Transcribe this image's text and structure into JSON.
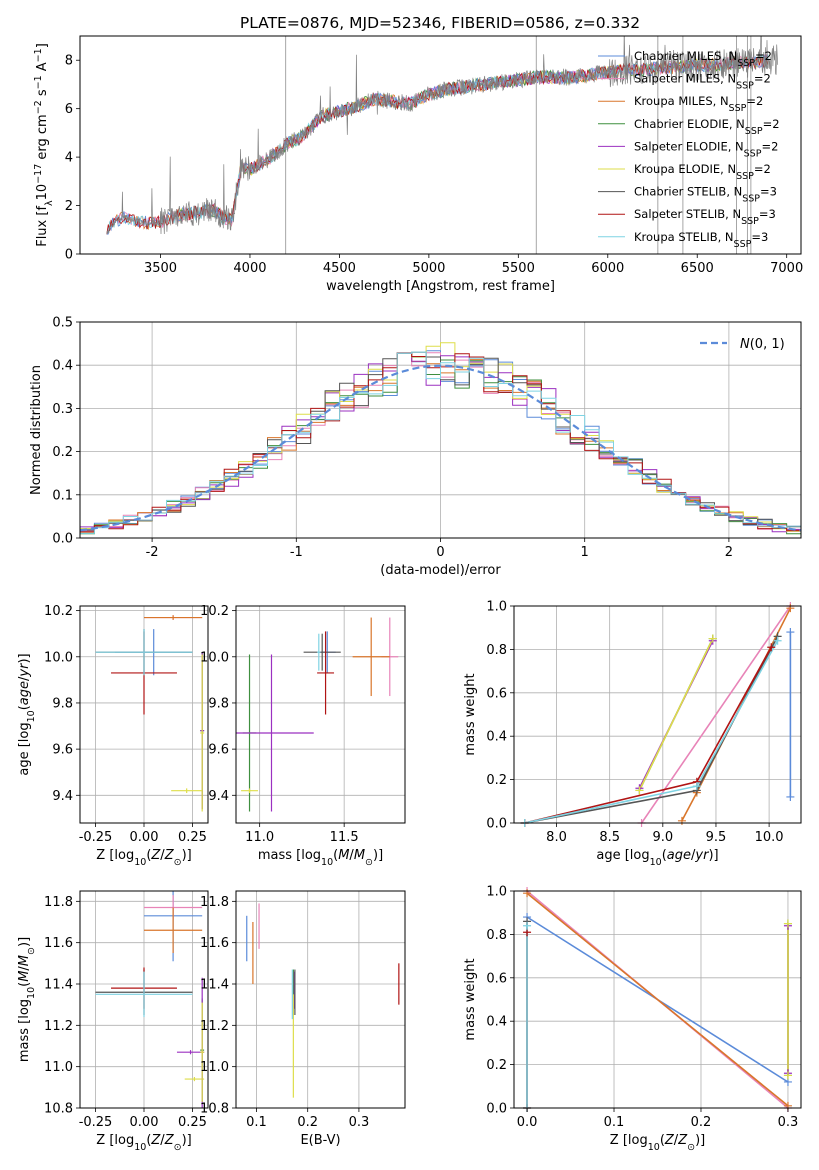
{
  "figure_title": "PLATE=0876, MJD=52346, FIBERID=0586, z=0.332",
  "colors": {
    "Chabrier MILES": "#5b8bd9",
    "Salpeter MILES": "#e884b8",
    "Kroupa MILES": "#d9762b",
    "Chabrier ELODIE": "#3f8f3f",
    "Salpeter ELODIE": "#9b30c0",
    "Kroupa ELODIE": "#dede4a",
    "Chabrier STELIB": "#555555",
    "Salpeter STELIB": "#b01414",
    "Kroupa STELIB": "#7fd3e3",
    "data": "#808080",
    "normal": "#5b8bd9"
  },
  "chart_data": [
    {
      "id": "spectrum",
      "type": "line",
      "title": "PLATE=0876, MJD=52346, FIBERID=0586, z=0.332",
      "xlabel": "wavelength [Angstrom, rest frame]",
      "ylabel": "Flux [f_λ 10^-17 erg cm^-2 s^-1 A^-1]",
      "xlim": [
        3050,
        7080
      ],
      "ylim": [
        0,
        9
      ],
      "xticks": [
        3500,
        4000,
        4500,
        5000,
        5500,
        6000,
        6500,
        7000
      ],
      "yticks": [
        0,
        2,
        4,
        6,
        8
      ],
      "grid": false,
      "legend": [
        "Chabrier MILES, N_SSP=2",
        "Salpeter MILES, N_SSP=2",
        "Kroupa MILES, N_SSP=2",
        "Chabrier ELODIE, N_SSP=2",
        "Salpeter ELODIE, N_SSP=2",
        "Kroupa ELODIE, N_SSP=2",
        "Chabrier STELIB, N_SSP=3",
        "Salpeter STELIB, N_SSP=3",
        "Kroupa STELIB, N_SSP=3"
      ],
      "legend_placement": "lower-right",
      "continuum": {
        "x": [
          3200,
          3250,
          3300,
          3400,
          3500,
          3600,
          3700,
          3800,
          3850,
          3900,
          3950,
          4000,
          4100,
          4200,
          4300,
          4400,
          4500,
          4600,
          4700,
          4800,
          4900,
          5000,
          5100,
          5200,
          5300,
          5400,
          5500,
          5600,
          5700,
          5800,
          5900,
          6000,
          6100,
          6200,
          6300,
          6400,
          6500,
          6600,
          6700,
          6800,
          6900
        ],
        "y": [
          0.9,
          1.4,
          1.5,
          1.3,
          1.3,
          1.6,
          1.7,
          1.8,
          1.5,
          1.4,
          3.6,
          3.5,
          3.9,
          4.5,
          4.9,
          5.7,
          5.9,
          6.1,
          6.4,
          6.3,
          6.2,
          6.6,
          6.8,
          6.9,
          7.0,
          7.1,
          7.2,
          7.3,
          7.3,
          7.3,
          7.4,
          7.5,
          7.6,
          7.6,
          7.7,
          7.7,
          7.8,
          7.8,
          7.9,
          7.9,
          8.0
        ]
      },
      "data_spike_lines": [
        4200,
        5600,
        6280,
        6420,
        6720,
        6780,
        6800
      ]
    },
    {
      "id": "residuals",
      "type": "line",
      "xlabel": "(data-model)/error",
      "ylabel": "Normed distribution",
      "xlim": [
        -2.5,
        2.5
      ],
      "ylim": [
        0,
        0.5
      ],
      "xticks": [
        -2,
        -1,
        0,
        1,
        2
      ],
      "yticks": [
        0.0,
        0.1,
        0.2,
        0.3,
        0.4,
        0.5
      ],
      "grid": true,
      "legend": [
        "N(0,1)"
      ],
      "legend_placement": "top-right",
      "normal": {
        "mean": 0,
        "sigma": 1
      }
    },
    {
      "id": "age-vs-Z",
      "type": "scatter",
      "xlabel": "Z [log10(Z/Z⊙)]",
      "ylabel": "age  [log10(age/yr)]",
      "xlim": [
        -0.33,
        0.33
      ],
      "ylim": [
        9.28,
        10.22
      ],
      "xticks": [
        -0.25,
        0.0,
        0.25
      ],
      "yticks": [
        9.4,
        9.6,
        9.8,
        10.0,
        10.2
      ],
      "grid": true,
      "points": [
        {
          "model": "Chabrier MILES",
          "x": 0.05,
          "xerr": 0.2,
          "y": 10.02,
          "yerr": 0.1
        },
        {
          "model": "Salpeter MILES",
          "x": 0.15,
          "xerr": 0.15,
          "y": 10.17,
          "yerr": 0.01
        },
        {
          "model": "Kroupa MILES",
          "x": 0.15,
          "xerr": 0.15,
          "y": 10.17,
          "yerr": 0.01
        },
        {
          "model": "Chabrier ELODIE",
          "x": 0.3,
          "xerr": 0.01,
          "y": 9.68,
          "yerr": 0.34
        },
        {
          "model": "Salpeter ELODIE",
          "x": 0.3,
          "xerr": 0.01,
          "y": 9.68,
          "yerr": 0.34
        },
        {
          "model": "Kroupa ELODIE",
          "x": 0.3,
          "xerr": 0.01,
          "y": 9.67,
          "yerr": 0.34
        },
        {
          "model": "Chabrier STELIB",
          "x": 0.0,
          "xerr": 0.25,
          "y": 10.02,
          "yerr": 0.1
        },
        {
          "model": "Salpeter STELIB",
          "x": 0.0,
          "xerr": 0.17,
          "y": 9.93,
          "yerr": 0.18
        },
        {
          "model": "Kroupa STELIB",
          "x": 0.0,
          "xerr": 0.25,
          "y": 10.02,
          "yerr": 0.1
        },
        {
          "model": "Kroupa ELODIE",
          "x": 0.22,
          "xerr": 0.08,
          "y": 9.42,
          "yerr": 0.01
        }
      ]
    },
    {
      "id": "age-vs-mass",
      "type": "scatter",
      "xlabel": "mass [log10(M/M⊙)]",
      "ylabel": "",
      "xlim": [
        10.86,
        11.86
      ],
      "ylim": [
        9.28,
        10.22
      ],
      "xticks": [
        11.0,
        11.5
      ],
      "yticks": [
        9.4,
        9.6,
        9.8,
        10.0,
        10.2
      ],
      "grid": true,
      "points": [
        {
          "model": "Chabrier MILES",
          "x": 11.4,
          "xerr": 0.05,
          "y": 10.02,
          "yerr": 0.09
        },
        {
          "model": "Salpeter MILES",
          "x": 11.77,
          "xerr": 0.05,
          "y": 10.0,
          "yerr": 0.17
        },
        {
          "model": "Kroupa MILES",
          "x": 11.66,
          "xerr": 0.11,
          "y": 10.0,
          "yerr": 0.17
        },
        {
          "model": "Chabrier ELODIE",
          "x": 10.94,
          "xerr": 0.04,
          "y": 9.67,
          "yerr": 0.34
        },
        {
          "model": "Salpeter ELODIE",
          "x": 11.07,
          "xerr": 0.25,
          "y": 9.67,
          "yerr": 0.34
        },
        {
          "model": "Kroupa ELODIE",
          "x": 10.94,
          "xerr": 0.05,
          "y": 9.42,
          "yerr": 0.01
        },
        {
          "model": "Chabrier STELIB",
          "x": 11.37,
          "xerr": 0.11,
          "y": 10.02,
          "yerr": 0.08
        },
        {
          "model": "Salpeter STELIB",
          "x": 11.39,
          "xerr": 0.05,
          "y": 9.93,
          "yerr": 0.18
        },
        {
          "model": "Kroupa STELIB",
          "x": 11.35,
          "xerr": 0.01,
          "y": 10.02,
          "yerr": 0.08
        }
      ]
    },
    {
      "id": "weight-vs-age",
      "type": "line",
      "xlabel": "age  [log10(age/yr)]",
      "ylabel": "mass weight",
      "xlim": [
        7.6,
        10.3
      ],
      "ylim": [
        0,
        1
      ],
      "xticks": [
        8.0,
        8.5,
        9.0,
        9.5,
        10.0
      ],
      "yticks": [
        0.0,
        0.2,
        0.4,
        0.6,
        0.8,
        1.0
      ],
      "grid": true,
      "series": [
        {
          "model": "Chabrier MILES",
          "x": [
            10.2,
            10.2
          ],
          "y": [
            0.12,
            0.88
          ],
          "vertical_range": true
        },
        {
          "model": "Salpeter MILES",
          "x": [
            8.8,
            10.2
          ],
          "y": [
            0.0,
            1.0
          ]
        },
        {
          "model": "Kroupa MILES",
          "x": [
            9.18,
            9.32,
            10.2
          ],
          "y": [
            0.01,
            0.14,
            0.99
          ]
        },
        {
          "model": "Chabrier ELODIE",
          "x": [
            8.78,
            9.47
          ],
          "y": [
            0.15,
            0.85
          ]
        },
        {
          "model": "Salpeter ELODIE",
          "x": [
            8.78,
            9.47
          ],
          "y": [
            0.16,
            0.84
          ]
        },
        {
          "model": "Kroupa ELODIE",
          "x": [
            8.78,
            9.47
          ],
          "y": [
            0.15,
            0.85
          ]
        },
        {
          "model": "Chabrier STELIB",
          "x": [
            7.7,
            9.32,
            10.08
          ],
          "y": [
            0.0,
            0.15,
            0.86
          ]
        },
        {
          "model": "Salpeter STELIB",
          "x": [
            7.7,
            9.32,
            10.02
          ],
          "y": [
            0.0,
            0.19,
            0.81
          ]
        },
        {
          "model": "Kroupa STELIB",
          "x": [
            7.7,
            9.32,
            10.08
          ],
          "y": [
            0.0,
            0.17,
            0.84
          ]
        }
      ]
    },
    {
      "id": "mass-vs-Z",
      "type": "scatter",
      "xlabel": "Z [log10(Z/Z⊙)]",
      "ylabel": "mass [log10(M/M⊙)]",
      "xlim": [
        -0.33,
        0.33
      ],
      "ylim": [
        10.8,
        11.85
      ],
      "xticks": [
        -0.25,
        0.0,
        0.25
      ],
      "yticks": [
        10.8,
        11.0,
        11.2,
        11.4,
        11.6,
        11.8
      ],
      "grid": true,
      "points": [
        {
          "model": "Chabrier MILES",
          "x": 0.15,
          "xerr": 0.15,
          "y": 11.73,
          "yerr": 0.22
        },
        {
          "model": "Salpeter MILES",
          "x": 0.15,
          "xerr": 0.15,
          "y": 11.77,
          "yerr": 0.06
        },
        {
          "model": "Kroupa MILES",
          "x": 0.15,
          "xerr": 0.15,
          "y": 11.66,
          "yerr": 0.11
        },
        {
          "model": "Chabrier ELODIE",
          "x": 0.3,
          "xerr": 0.01,
          "y": 11.08,
          "yerr": 0.25
        },
        {
          "model": "Salpeter ELODIE",
          "x": 0.24,
          "xerr": 0.07,
          "y": 11.07,
          "yerr": 0.01
        },
        {
          "model": "Kroupa ELODIE",
          "x": 0.26,
          "xerr": 0.05,
          "y": 10.94,
          "yerr": 0.01
        },
        {
          "model": "Chabrier STELIB",
          "x": 0.0,
          "xerr": 0.25,
          "y": 11.36,
          "yerr": 0.11
        },
        {
          "model": "Salpeter STELIB",
          "x": 0.0,
          "xerr": 0.17,
          "y": 11.38,
          "yerr": 0.1
        },
        {
          "model": "Kroupa STELIB",
          "x": 0.0,
          "xerr": 0.25,
          "y": 11.35,
          "yerr": 0.11
        },
        {
          "model": "Salpeter ELODIE",
          "x": 0.3,
          "xerr": 0.01,
          "y": 11.07,
          "yerr": 0.36
        },
        {
          "model": "Kroupa ELODIE",
          "x": 0.3,
          "xerr": 0.01,
          "y": 11.07,
          "yerr": 0.24
        }
      ]
    },
    {
      "id": "mass-vs-ebv",
      "type": "scatter",
      "xlabel": "E(B-V)",
      "ylabel": "",
      "xlim": [
        0.06,
        0.39
      ],
      "ylim": [
        10.8,
        11.85
      ],
      "xticks": [
        0.1,
        0.2,
        0.3
      ],
      "yticks": [
        10.8,
        11.0,
        11.2,
        11.4,
        11.6,
        11.8
      ],
      "grid": true,
      "points": [
        {
          "model": "Chabrier MILES",
          "x": 0.081,
          "xerr": 0.0,
          "y": 11.62,
          "yerr": 0.11
        },
        {
          "model": "Salpeter MILES",
          "x": 0.105,
          "xerr": 0.0,
          "y": 11.68,
          "yerr": 0.11
        },
        {
          "model": "Kroupa MILES",
          "x": 0.093,
          "xerr": 0.0,
          "y": 11.55,
          "yerr": 0.15
        },
        {
          "model": "Chabrier ELODIE",
          "x": 0.172,
          "xerr": 0.0,
          "y": 11.36,
          "yerr": 0.11
        },
        {
          "model": "Salpeter ELODIE",
          "x": 0.174,
          "xerr": 0.0,
          "y": 11.37,
          "yerr": 0.09
        },
        {
          "model": "Kroupa ELODIE",
          "x": 0.172,
          "xerr": 0.0,
          "y": 11.1,
          "yerr": 0.25
        },
        {
          "model": "Chabrier STELIB",
          "x": 0.175,
          "xerr": 0.0,
          "y": 11.36,
          "yerr": 0.11
        },
        {
          "model": "Salpeter STELIB",
          "x": 0.378,
          "xerr": 0.0,
          "y": 11.4,
          "yerr": 0.1
        },
        {
          "model": "Kroupa STELIB",
          "x": 0.17,
          "xerr": 0.0,
          "y": 11.35,
          "yerr": 0.12
        }
      ]
    },
    {
      "id": "weight-vs-Z",
      "type": "line",
      "xlabel": "Z [log10(Z/Z⊙)]",
      "ylabel": "mass weight",
      "xlim": [
        -0.015,
        0.315
      ],
      "ylim": [
        0,
        1
      ],
      "xticks": [
        0.0,
        0.1,
        0.2,
        0.3
      ],
      "yticks": [
        0.0,
        0.2,
        0.4,
        0.6,
        0.8,
        1.0
      ],
      "grid": true,
      "series": [
        {
          "model": "Chabrier MILES",
          "x": [
            0.0,
            0.3
          ],
          "y": [
            0.88,
            0.12
          ]
        },
        {
          "model": "Salpeter MILES",
          "x": [
            0.0,
            0.3
          ],
          "y": [
            1.0,
            0.0
          ]
        },
        {
          "model": "Kroupa MILES",
          "x": [
            0.0,
            0.3
          ],
          "y": [
            0.99,
            0.01
          ]
        },
        {
          "model": "Chabrier ELODIE",
          "x": [
            0.3,
            0.3
          ],
          "y": [
            0.15,
            0.85
          ],
          "vertical_range": true
        },
        {
          "model": "Salpeter ELODIE",
          "x": [
            0.3,
            0.3
          ],
          "y": [
            0.16,
            0.84
          ],
          "vertical_range": true
        },
        {
          "model": "Kroupa ELODIE",
          "x": [
            0.3,
            0.3
          ],
          "y": [
            0.15,
            0.85
          ],
          "vertical_range": true
        },
        {
          "model": "Chabrier STELIB",
          "x": [
            0.0,
            0.0
          ],
          "y": [
            0.0,
            0.86
          ],
          "vertical_range": true
        },
        {
          "model": "Salpeter STELIB",
          "x": [
            0.0,
            0.0
          ],
          "y": [
            0.0,
            0.81
          ],
          "vertical_range": true
        },
        {
          "model": "Kroupa STELIB",
          "x": [
            0.0,
            0.0
          ],
          "y": [
            0.0,
            0.84
          ],
          "vertical_range": true
        }
      ]
    }
  ]
}
